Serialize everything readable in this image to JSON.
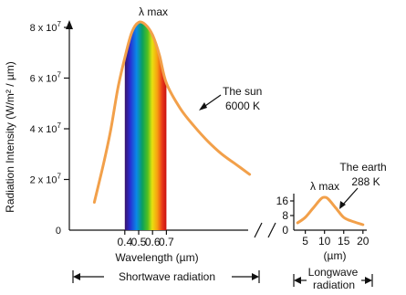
{
  "chart_data": [
    {
      "type": "line",
      "name_label": "The sun",
      "temp_label": "6000 K",
      "ylabel": "Radiation Intensity (W/m² / µm)",
      "xlabel": "Wavelength (µm)",
      "peak_label": "λ max",
      "y_ticks": [
        {
          "base": "8 x 10",
          "exp": "7"
        },
        {
          "base": "6 x 10",
          "exp": "7"
        },
        {
          "base": "4 x 10",
          "exp": "7"
        },
        {
          "base": "2 x 10",
          "exp": "7"
        },
        {
          "base": "0",
          "exp": ""
        }
      ],
      "y_tick_values": [
        80000000,
        60000000,
        40000000,
        20000000,
        0
      ],
      "x_ticks": [
        "0.4",
        "0.5",
        "0.6",
        "0.7"
      ],
      "x_tick_values": [
        0.4,
        0.5,
        0.6,
        0.7
      ],
      "xlim": [
        0.0,
        1.5
      ],
      "ylim": [
        0,
        80000000
      ],
      "visible_band": [
        0.4,
        0.7
      ],
      "series": [
        {
          "x": [
            0.18,
            0.25,
            0.3,
            0.35,
            0.4,
            0.45,
            0.5,
            0.55,
            0.6,
            0.65,
            0.7,
            0.8,
            0.9,
            1.0,
            1.1,
            1.2,
            1.3
          ],
          "values": [
            11000000,
            27000000,
            40000000,
            56000000,
            68000000,
            78000000,
            82000000,
            81000000,
            77000000,
            69000000,
            58000000,
            48000000,
            41000000,
            35000000,
            30000000,
            26000000,
            22000000
          ]
        }
      ]
    },
    {
      "type": "line",
      "name_label": "The earth",
      "temp_label": "288 K",
      "xlabel": "(µm)",
      "peak_label": "λ max",
      "y_ticks": [
        "16",
        "8",
        "0"
      ],
      "y_tick_values": [
        16,
        8,
        0
      ],
      "x_ticks": [
        "5",
        "10",
        "15",
        "20"
      ],
      "x_tick_values": [
        5,
        10,
        15,
        20
      ],
      "xlim": [
        2,
        21
      ],
      "ylim": [
        0,
        20
      ],
      "series": [
        {
          "x": [
            3,
            5,
            7,
            9,
            10,
            11,
            13,
            15,
            17,
            20
          ],
          "values": [
            4,
            7,
            12,
            17,
            18,
            17,
            12,
            7,
            5,
            3
          ]
        }
      ]
    }
  ],
  "shortwave_label": "Shortwave radiation",
  "longwave_label_1": "Longwave",
  "longwave_label_2": "radiation"
}
